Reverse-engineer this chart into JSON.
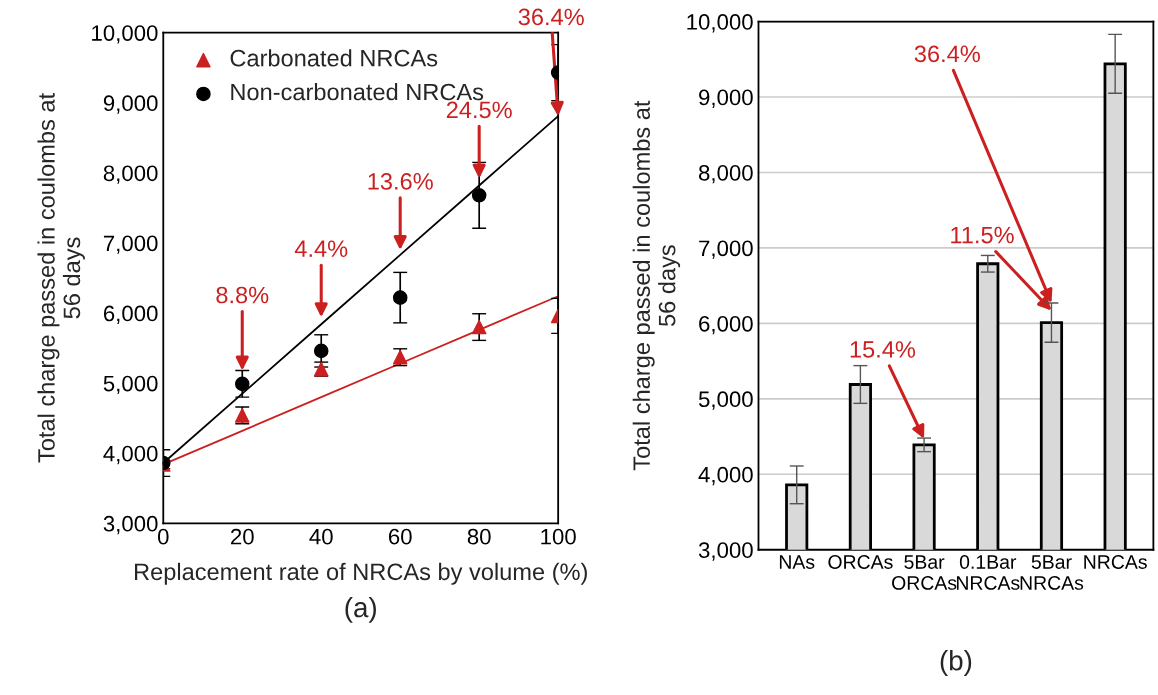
{
  "chart_data": [
    {
      "type": "scatter",
      "ylabel": "Total charge passed in coulombs at\n56 days",
      "xlabel": "Replacement rate of NRCAs by volume (%)",
      "x": [
        0,
        20,
        40,
        60,
        80,
        100
      ],
      "series": [
        {
          "name": "Carbonated NRCAs",
          "color": "#cc2020",
          "marker": "triangle",
          "values": [
            3840,
            4540,
            5200,
            5370,
            5800,
            5960
          ],
          "errors": [
            60,
            120,
            100,
            120,
            190,
            250
          ]
        },
        {
          "name": "Non-carbonated NRCAs",
          "color": "#000000",
          "marker": "circle",
          "values": [
            3860,
            4990,
            5460,
            6220,
            7680,
            9430
          ],
          "errors": [
            190,
            190,
            230,
            360,
            470,
            400
          ]
        },
        {
          "type": "line",
          "color": "#cc2020",
          "values": [
            3840,
            4320,
            4800,
            5280,
            5760,
            6240
          ]
        },
        {
          "type": "line",
          "color": "#000000",
          "values": [
            3860,
            4850,
            5840,
            6830,
            7820,
            8810
          ]
        }
      ],
      "annotations": [
        {
          "text": "8.8%",
          "x": 20,
          "y": 5180
        },
        {
          "text": "4.4%",
          "x": 40,
          "y": 5940
        },
        {
          "text": "13.6%",
          "x": 60,
          "y": 6900
        },
        {
          "text": "24.5%",
          "x": 80,
          "y": 7920
        },
        {
          "text": "36.4%",
          "x": 100,
          "y": 8810
        },
        "(a)"
      ],
      "xlim": [
        0,
        100
      ],
      "xticks": [
        0,
        20,
        40,
        60,
        80,
        100
      ],
      "ylim": [
        3000,
        10000
      ],
      "yticks": [
        {
          "value": 3000,
          "label": "3,000"
        },
        {
          "value": 4000,
          "label": "4,000"
        },
        {
          "value": 5000,
          "label": "5,000"
        },
        {
          "value": 6000,
          "label": "6,000"
        },
        {
          "value": 7000,
          "label": "7,000"
        },
        {
          "value": 8000,
          "label": "8,000"
        },
        {
          "value": 9000,
          "label": "9,000"
        },
        {
          "value": 10000,
          "label": "10,000"
        }
      ],
      "grid": false,
      "legend": "top left"
    },
    {
      "type": "bar",
      "ylabel": "Total charge passed in coulombs at\n56 days",
      "categories": [
        "NAs",
        "ORCAs",
        "5Bar\nORCAs",
        "0.1Bar\nNRCAs",
        "5Bar\nNRCAs",
        "NRCAs"
      ],
      "values": [
        3860,
        5190,
        4390,
        6790,
        6010,
        9440
      ],
      "errors": [
        250,
        250,
        90,
        110,
        260,
        390
      ],
      "color": "#d9d9d9",
      "annotations": [
        {
          "text": "15.4%",
          "x": "5Bar\nORCAs",
          "y": 4470
        },
        {
          "text": "11.5%",
          "x": "5Bar\nNRCAs",
          "y": 6170
        },
        {
          "text": "36.4%",
          "x": "5Bar\nNRCAs",
          "y": 6270
        },
        "(b)"
      ],
      "ylim": [
        3000,
        10000
      ],
      "yticks": [
        {
          "value": 3000,
          "label": "3,000"
        },
        {
          "value": 4000,
          "label": "4,000"
        },
        {
          "value": 5000,
          "label": "5,000"
        },
        {
          "value": 6000,
          "label": "6,000"
        },
        {
          "value": 7000,
          "label": "7,000"
        },
        {
          "value": 8000,
          "label": "8,000"
        },
        {
          "value": 9000,
          "label": "9,000"
        },
        {
          "value": 10000,
          "label": "10,000"
        }
      ],
      "grid": "y"
    }
  ]
}
